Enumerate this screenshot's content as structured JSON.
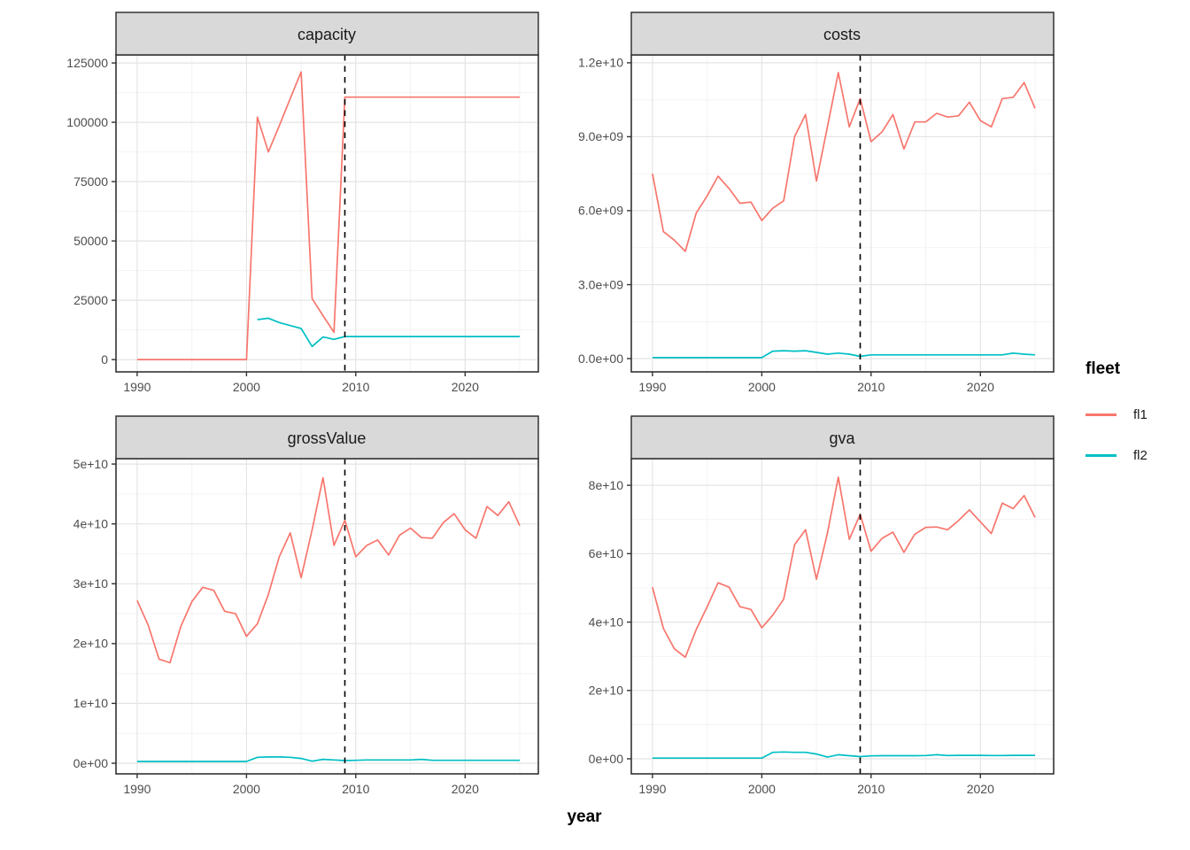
{
  "figure": {
    "x_axis_title": "year",
    "legend": {
      "title": "fleet",
      "entries": [
        {
          "label": "fl1",
          "color": "#F8766D"
        },
        {
          "label": "fl2",
          "color": "#00BFC4"
        }
      ]
    },
    "reference_line_year": 2009,
    "facet_titles": [
      "capacity",
      "costs",
      "grossValue",
      "gva"
    ]
  },
  "chart_data": [
    {
      "type": "line",
      "title": "capacity",
      "xlabel": "year",
      "x": [
        1990,
        1991,
        1992,
        1993,
        1994,
        1995,
        1996,
        1997,
        1998,
        1999,
        2000,
        2001,
        2002,
        2003,
        2004,
        2005,
        2006,
        2007,
        2008,
        2009,
        2010,
        2011,
        2012,
        2013,
        2014,
        2015,
        2016,
        2017,
        2018,
        2019,
        2020,
        2021,
        2022,
        2023,
        2024,
        2025
      ],
      "xlim": [
        1988.06,
        2026.7
      ],
      "xticks": {
        "values": [
          1990,
          2000,
          2010,
          2020
        ],
        "labels": [
          "1990",
          "2000",
          "2010",
          "2020"
        ],
        "minor": [
          1995,
          2005,
          2015,
          2025
        ]
      },
      "ylim": [
        -5200,
        128400
      ],
      "yticks": {
        "values": [
          0,
          25000,
          50000,
          75000,
          100000,
          125000
        ],
        "labels": [
          "0",
          "25000",
          "50000",
          "75000",
          "100000",
          "125000"
        ],
        "minor": [
          12500,
          37500,
          62500,
          87500,
          112500
        ]
      },
      "vline": {
        "x": 2009,
        "style": "dashed",
        "color": "#000000"
      },
      "grid": true,
      "legend_position": "right",
      "series": [
        {
          "name": "fl1",
          "color": "#F8766D",
          "values": [
            0,
            0,
            0,
            0,
            0,
            0,
            0,
            0,
            0,
            0,
            0,
            102200,
            87500,
            98500,
            110000,
            121200,
            25700,
            18500,
            11500,
            110600,
            110600,
            110600,
            110600,
            110600,
            110600,
            110600,
            110600,
            110600,
            110600,
            110600,
            110600,
            110600,
            110600,
            110600,
            110600,
            110600
          ]
        },
        {
          "name": "fl2",
          "color": "#00BFC4",
          "values": [
            null,
            null,
            null,
            null,
            null,
            null,
            null,
            null,
            null,
            null,
            null,
            16800,
            17400,
            15600,
            14300,
            13100,
            5500,
            9500,
            8500,
            9700,
            9700,
            9700,
            9700,
            9700,
            9700,
            9700,
            9700,
            9700,
            9700,
            9700,
            9700,
            9700,
            9700,
            9700,
            9700,
            9700
          ]
        }
      ]
    },
    {
      "type": "line",
      "title": "costs",
      "xlabel": "year",
      "x": [
        1990,
        1991,
        1992,
        1993,
        1994,
        1995,
        1996,
        1997,
        1998,
        1999,
        2000,
        2001,
        2002,
        2003,
        2004,
        2005,
        2006,
        2007,
        2008,
        2009,
        2010,
        2011,
        2012,
        2013,
        2014,
        2015,
        2016,
        2017,
        2018,
        2019,
        2020,
        2021,
        2022,
        2023,
        2024,
        2025
      ],
      "xlim": [
        1988.06,
        2026.7
      ],
      "xticks": {
        "values": [
          1990,
          2000,
          2010,
          2020
        ],
        "labels": [
          "1990",
          "2000",
          "2010",
          "2020"
        ],
        "minor": [
          1995,
          2005,
          2015,
          2025
        ]
      },
      "ylim": [
        -540000000.0,
        12320000000.0
      ],
      "yticks": {
        "values": [
          0,
          3000000000.0,
          6000000000.0,
          9000000000.0,
          12000000000.0
        ],
        "labels": [
          "0.0e+00",
          "3.0e+09",
          "6.0e+09",
          "9.0e+09",
          "1.2e+10"
        ],
        "minor": [
          1500000000.0,
          4500000000.0,
          7500000000.0,
          10500000000.0
        ]
      },
      "vline": {
        "x": 2009,
        "style": "dashed",
        "color": "#000000"
      },
      "grid": true,
      "legend_position": "right",
      "series": [
        {
          "name": "fl1",
          "color": "#F8766D",
          "values": [
            7500000000.0,
            5150000000.0,
            4800000000.0,
            4350000000.0,
            5900000000.0,
            6600000000.0,
            7400000000.0,
            6900000000.0,
            6300000000.0,
            6350000000.0,
            5600000000.0,
            6100000000.0,
            6400000000.0,
            9000000000.0,
            9900000000.0,
            7200000000.0,
            9400000000.0,
            11600000000.0,
            9400000000.0,
            10550000000.0,
            8800000000.0,
            9200000000.0,
            9900000000.0,
            8500000000.0,
            9600000000.0,
            9600000000.0,
            9950000000.0,
            9800000000.0,
            9850000000.0,
            10400000000.0,
            9650000000.0,
            9400000000.0,
            10550000000.0,
            10600000000.0,
            11200000000.0,
            10150000000.0
          ]
        },
        {
          "name": "fl2",
          "color": "#00BFC4",
          "values": [
            40000000.0,
            40000000.0,
            40000000.0,
            40000000.0,
            40000000.0,
            40000000.0,
            40000000.0,
            40000000.0,
            40000000.0,
            40000000.0,
            40000000.0,
            300000000.0,
            320000000.0,
            300000000.0,
            320000000.0,
            250000000.0,
            180000000.0,
            220000000.0,
            180000000.0,
            90000000.0,
            150000000.0,
            150000000.0,
            150000000.0,
            150000000.0,
            150000000.0,
            150000000.0,
            150000000.0,
            150000000.0,
            150000000.0,
            150000000.0,
            150000000.0,
            150000000.0,
            150000000.0,
            220000000.0,
            180000000.0,
            150000000.0
          ]
        }
      ]
    },
    {
      "type": "line",
      "title": "grossValue",
      "xlabel": "year",
      "x": [
        1990,
        1991,
        1992,
        1993,
        1994,
        1995,
        1996,
        1997,
        1998,
        1999,
        2000,
        2001,
        2002,
        2003,
        2004,
        2005,
        2006,
        2007,
        2008,
        2009,
        2010,
        2011,
        2012,
        2013,
        2014,
        2015,
        2016,
        2017,
        2018,
        2019,
        2020,
        2021,
        2022,
        2023,
        2024,
        2025
      ],
      "xlim": [
        1988.06,
        2026.7
      ],
      "xticks": {
        "values": [
          1990,
          2000,
          2010,
          2020
        ],
        "labels": [
          "1990",
          "2000",
          "2010",
          "2020"
        ],
        "minor": [
          1995,
          2005,
          2015,
          2025
        ]
      },
      "ylim": [
        -1770000000.0,
        50900000000.0
      ],
      "yticks": {
        "values": [
          0,
          10000000000.0,
          20000000000.0,
          30000000000.0,
          40000000000.0,
          50000000000.0
        ],
        "labels": [
          "0e+00",
          "1e+10",
          "2e+10",
          "3e+10",
          "4e+10",
          "5e+10"
        ],
        "minor": [
          5000000000.0,
          15000000000.0,
          25000000000.0,
          35000000000.0,
          45000000000.0
        ]
      },
      "vline": {
        "x": 2009,
        "style": "dashed",
        "color": "#000000"
      },
      "grid": true,
      "legend_position": "right",
      "series": [
        {
          "name": "fl1",
          "color": "#F8766D",
          "values": [
            27200000000.0,
            23100000000.0,
            17400000000.0,
            16800000000.0,
            22900000000.0,
            27000000000.0,
            29400000000.0,
            28900000000.0,
            25400000000.0,
            25000000000.0,
            21200000000.0,
            23300000000.0,
            28200000000.0,
            34500000000.0,
            38500000000.0,
            31000000000.0,
            39000000000.0,
            47700000000.0,
            36400000000.0,
            40600000000.0,
            34500000000.0,
            36400000000.0,
            37300000000.0,
            34800000000.0,
            38100000000.0,
            39300000000.0,
            37700000000.0,
            37600000000.0,
            40200000000.0,
            41700000000.0,
            39000000000.0,
            37600000000.0,
            42900000000.0,
            41400000000.0,
            43700000000.0,
            39700000000.0
          ]
        },
        {
          "name": "fl2",
          "color": "#00BFC4",
          "values": [
            300000000.0,
            300000000.0,
            300000000.0,
            300000000.0,
            300000000.0,
            300000000.0,
            300000000.0,
            300000000.0,
            300000000.0,
            300000000.0,
            300000000.0,
            1000000000.0,
            1050000000.0,
            1050000000.0,
            1000000000.0,
            800000000.0,
            350000000.0,
            650000000.0,
            550000000.0,
            450000000.0,
            500000000.0,
            550000000.0,
            550000000.0,
            550000000.0,
            550000000.0,
            550000000.0,
            650000000.0,
            500000000.0,
            500000000.0,
            500000000.0,
            500000000.0,
            500000000.0,
            500000000.0,
            500000000.0,
            500000000.0,
            500000000.0
          ]
        }
      ]
    },
    {
      "type": "line",
      "title": "gva",
      "xlabel": "year",
      "x": [
        1990,
        1991,
        1992,
        1993,
        1994,
        1995,
        1996,
        1997,
        1998,
        1999,
        2000,
        2001,
        2002,
        2003,
        2004,
        2005,
        2006,
        2007,
        2008,
        2009,
        2010,
        2011,
        2012,
        2013,
        2014,
        2015,
        2016,
        2017,
        2018,
        2019,
        2020,
        2021,
        2022,
        2023,
        2024,
        2025
      ],
      "xlim": [
        1988.06,
        2026.7
      ],
      "xticks": {
        "values": [
          1990,
          2000,
          2010,
          2020
        ],
        "labels": [
          "1990",
          "2000",
          "2010",
          "2020"
        ],
        "minor": [
          1995,
          2005,
          2015,
          2025
        ]
      },
      "ylim": [
        -4400000000.0,
        87800000000.0
      ],
      "yticks": {
        "values": [
          0,
          20000000000.0,
          40000000000.0,
          60000000000.0,
          80000000000.0
        ],
        "labels": [
          "0e+00",
          "2e+10",
          "4e+10",
          "6e+10",
          "8e+10"
        ],
        "minor": [
          10000000000.0,
          30000000000.0,
          50000000000.0,
          70000000000.0
        ]
      },
      "vline": {
        "x": 2009,
        "style": "dashed",
        "color": "#000000"
      },
      "grid": true,
      "legend_position": "right",
      "series": [
        {
          "name": "fl1",
          "color": "#F8766D",
          "values": [
            50200000000.0,
            38100000000.0,
            32200000000.0,
            29700000000.0,
            37800000000.0,
            44500000000.0,
            51500000000.0,
            50200000000.0,
            44500000000.0,
            43700000000.0,
            38300000000.0,
            42000000000.0,
            46700000000.0,
            62600000000.0,
            67000000000.0,
            52500000000.0,
            66000000000.0,
            82400000000.0,
            64200000000.0,
            71500000000.0,
            60700000000.0,
            64500000000.0,
            66300000000.0,
            60400000000.0,
            65700000000.0,
            67700000000.0,
            67800000000.0,
            67000000000.0,
            69700000000.0,
            72800000000.0,
            69300000000.0,
            65900000000.0,
            74800000000.0,
            73200000000.0,
            77000000000.0,
            70600000000.0
          ]
        },
        {
          "name": "fl2",
          "color": "#00BFC4",
          "values": [
            200000000.0,
            200000000.0,
            200000000.0,
            200000000.0,
            200000000.0,
            200000000.0,
            200000000.0,
            200000000.0,
            200000000.0,
            200000000.0,
            200000000.0,
            1900000000.0,
            2000000000.0,
            1900000000.0,
            1900000000.0,
            1400000000.0,
            500000000.0,
            1200000000.0,
            900000000.0,
            650000000.0,
            850000000.0,
            900000000.0,
            900000000.0,
            900000000.0,
            900000000.0,
            950000000.0,
            1200000000.0,
            950000000.0,
            1000000000.0,
            1000000000.0,
            1000000000.0,
            950000000.0,
            950000000.0,
            1000000000.0,
            1000000000.0,
            1000000000.0
          ]
        }
      ]
    }
  ]
}
